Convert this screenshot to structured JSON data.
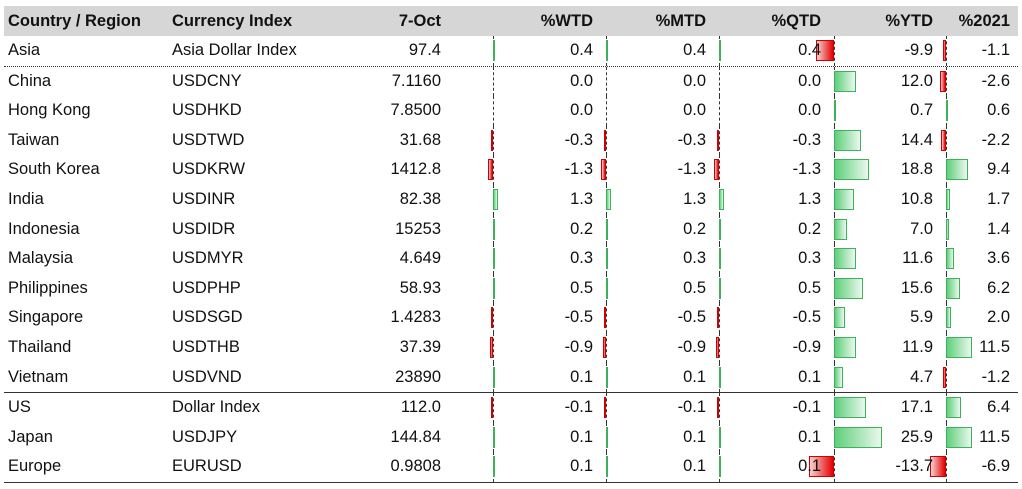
{
  "header": {
    "country": "Country / Region",
    "index": "Currency Index",
    "date": "7-Oct",
    "wtd": "%WTD",
    "mtd": "%MTD",
    "qtd": "%QTD",
    "ytd": "%YTD",
    "y2021": "%2021"
  },
  "rows": [
    {
      "country": "Asia",
      "index": "Asia Dollar Index",
      "price": "97.4",
      "wtd": "0.4",
      "mtd": "0.4",
      "qtd": "0.4",
      "ytd": "-9.9",
      "y2021": "-1.1"
    },
    {
      "country": "China",
      "index": "USDCNY",
      "price": "7.1160",
      "wtd": "0.0",
      "mtd": "0.0",
      "qtd": "0.0",
      "ytd": "12.0",
      "y2021": "-2.6"
    },
    {
      "country": "Hong Kong",
      "index": "USDHKD",
      "price": "7.8500",
      "wtd": "0.0",
      "mtd": "0.0",
      "qtd": "0.0",
      "ytd": "0.7",
      "y2021": "0.6"
    },
    {
      "country": "Taiwan",
      "index": "USDTWD",
      "price": "31.68",
      "wtd": "-0.3",
      "mtd": "-0.3",
      "qtd": "-0.3",
      "ytd": "14.4",
      "y2021": "-2.2"
    },
    {
      "country": "South Korea",
      "index": "USDKRW",
      "price": "1412.8",
      "wtd": "-1.3",
      "mtd": "-1.3",
      "qtd": "-1.3",
      "ytd": "18.8",
      "y2021": "9.4"
    },
    {
      "country": "India",
      "index": "USDINR",
      "price": "82.38",
      "wtd": "1.3",
      "mtd": "1.3",
      "qtd": "1.3",
      "ytd": "10.8",
      "y2021": "1.7"
    },
    {
      "country": "Indonesia",
      "index": "USDIDR",
      "price": "15253",
      "wtd": "0.2",
      "mtd": "0.2",
      "qtd": "0.2",
      "ytd": "7.0",
      "y2021": "1.4"
    },
    {
      "country": "Malaysia",
      "index": "USDMYR",
      "price": "4.649",
      "wtd": "0.3",
      "mtd": "0.3",
      "qtd": "0.3",
      "ytd": "11.6",
      "y2021": "3.6"
    },
    {
      "country": "Philippines",
      "index": "USDPHP",
      "price": "58.93",
      "wtd": "0.5",
      "mtd": "0.5",
      "qtd": "0.5",
      "ytd": "15.6",
      "y2021": "6.2"
    },
    {
      "country": "Singapore",
      "index": "USDSGD",
      "price": "1.4283",
      "wtd": "-0.5",
      "mtd": "-0.5",
      "qtd": "-0.5",
      "ytd": "5.9",
      "y2021": "2.0"
    },
    {
      "country": "Thailand",
      "index": "USDTHB",
      "price": "37.39",
      "wtd": "-0.9",
      "mtd": "-0.9",
      "qtd": "-0.9",
      "ytd": "11.9",
      "y2021": "11.5"
    },
    {
      "country": "Vietnam",
      "index": "USDVND",
      "price": "23890",
      "wtd": "0.1",
      "mtd": "0.1",
      "qtd": "0.1",
      "ytd": "4.7",
      "y2021": "-1.2"
    },
    {
      "country": "US",
      "index": "Dollar Index",
      "price": "112.0",
      "wtd": "-0.1",
      "mtd": "-0.1",
      "qtd": "-0.1",
      "ytd": "17.1",
      "y2021": "6.4"
    },
    {
      "country": "Japan",
      "index": "USDJPY",
      "price": "144.84",
      "wtd": "0.1",
      "mtd": "0.1",
      "qtd": "0.1",
      "ytd": "25.9",
      "y2021": "11.5"
    },
    {
      "country": "Europe",
      "index": "EURUSD",
      "price": "0.9808",
      "wtd": "0.1",
      "mtd": "0.1",
      "qtd": "0.1",
      "ytd": "-13.7",
      "y2021": "-6.9"
    }
  ],
  "colors": {
    "header_bg": "#d6d6d6",
    "positive_bar": "#5fcf7a",
    "negative_bar": "#e30000"
  }
}
